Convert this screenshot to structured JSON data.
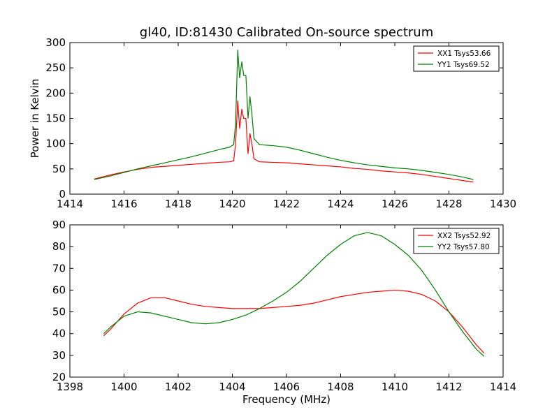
{
  "figure": {
    "title": "gl40, ID:81430 Calibrated On-source spectrum"
  },
  "chart_data": [
    {
      "type": "line",
      "title": "gl40, ID:81430 Calibrated On-source spectrum",
      "xlabel": "",
      "ylabel": "Power in Kelvin",
      "xlim": [
        1414,
        1430
      ],
      "ylim": [
        0,
        300
      ],
      "xticks": [
        1414,
        1416,
        1418,
        1420,
        1422,
        1424,
        1426,
        1428,
        1430
      ],
      "yticks": [
        0,
        50,
        100,
        150,
        200,
        250,
        300
      ],
      "grid": false,
      "legend_position": "top-right",
      "series": [
        {
          "name": "XX1 Tsys53.66",
          "color": "#ff0000",
          "points": [
            [
              1414.9,
              30
            ],
            [
              1415.5,
              38
            ],
            [
              1416.0,
              44
            ],
            [
              1416.5,
              49
            ],
            [
              1417.0,
              53
            ],
            [
              1417.5,
              55
            ],
            [
              1418.0,
              57
            ],
            [
              1418.5,
              59
            ],
            [
              1419.0,
              61
            ],
            [
              1419.5,
              63
            ],
            [
              1419.9,
              64
            ],
            [
              1420.05,
              66
            ],
            [
              1420.12,
              100
            ],
            [
              1420.2,
              185
            ],
            [
              1420.27,
              130
            ],
            [
              1420.35,
              168
            ],
            [
              1420.42,
              150
            ],
            [
              1420.5,
              150
            ],
            [
              1420.58,
              80
            ],
            [
              1420.65,
              120
            ],
            [
              1420.72,
              100
            ],
            [
              1420.8,
              70
            ],
            [
              1421.0,
              64
            ],
            [
              1421.5,
              63
            ],
            [
              1422.0,
              62
            ],
            [
              1422.5,
              60
            ],
            [
              1423.0,
              58
            ],
            [
              1423.5,
              56
            ],
            [
              1424.0,
              54
            ],
            [
              1424.5,
              51
            ],
            [
              1425.0,
              49
            ],
            [
              1425.5,
              46
            ],
            [
              1426.0,
              44
            ],
            [
              1426.5,
              42
            ],
            [
              1427.0,
              39
            ],
            [
              1427.5,
              35
            ],
            [
              1428.0,
              31
            ],
            [
              1428.5,
              27
            ],
            [
              1428.9,
              24
            ]
          ]
        },
        {
          "name": "YY1 Tsys69.52",
          "color": "#008000",
          "points": [
            [
              1414.9,
              29
            ],
            [
              1415.5,
              36
            ],
            [
              1416.0,
              43
            ],
            [
              1416.5,
              50
            ],
            [
              1417.0,
              56
            ],
            [
              1417.5,
              62
            ],
            [
              1418.0,
              68
            ],
            [
              1418.5,
              74
            ],
            [
              1419.0,
              81
            ],
            [
              1419.5,
              88
            ],
            [
              1419.9,
              93
            ],
            [
              1420.05,
              98
            ],
            [
              1420.12,
              140
            ],
            [
              1420.2,
              285
            ],
            [
              1420.27,
              230
            ],
            [
              1420.35,
              262
            ],
            [
              1420.42,
              235
            ],
            [
              1420.5,
              235
            ],
            [
              1420.58,
              150
            ],
            [
              1420.65,
              193
            ],
            [
              1420.72,
              160
            ],
            [
              1420.8,
              110
            ],
            [
              1421.0,
              98
            ],
            [
              1421.5,
              96
            ],
            [
              1422.0,
              93
            ],
            [
              1422.5,
              87
            ],
            [
              1423.0,
              80
            ],
            [
              1423.5,
              73
            ],
            [
              1424.0,
              67
            ],
            [
              1424.5,
              62
            ],
            [
              1425.0,
              58
            ],
            [
              1425.5,
              55
            ],
            [
              1426.0,
              52
            ],
            [
              1426.5,
              50
            ],
            [
              1427.0,
              47
            ],
            [
              1427.5,
              43
            ],
            [
              1428.0,
              39
            ],
            [
              1428.5,
              34
            ],
            [
              1428.9,
              29
            ]
          ]
        }
      ]
    },
    {
      "type": "line",
      "title": "",
      "xlabel": "Frequency (MHz)",
      "ylabel": "",
      "xlim": [
        1398,
        1414
      ],
      "ylim": [
        20,
        90
      ],
      "xticks": [
        1398,
        1400,
        1402,
        1404,
        1406,
        1408,
        1410,
        1412,
        1414
      ],
      "yticks": [
        20,
        30,
        40,
        50,
        60,
        70,
        80,
        90
      ],
      "grid": false,
      "legend_position": "top-right",
      "series": [
        {
          "name": "XX2 Tsys52.92",
          "color": "#ff0000",
          "points": [
            [
              1399.25,
              39
            ],
            [
              1399.5,
              42
            ],
            [
              1400.0,
              49
            ],
            [
              1400.5,
              54
            ],
            [
              1401.0,
              56.5
            ],
            [
              1401.5,
              56.5
            ],
            [
              1402.0,
              55
            ],
            [
              1402.5,
              53.5
            ],
            [
              1403.0,
              52.5
            ],
            [
              1403.5,
              52
            ],
            [
              1404.0,
              51.5
            ],
            [
              1404.5,
              51.5
            ],
            [
              1405.0,
              51.5
            ],
            [
              1405.5,
              52
            ],
            [
              1406.0,
              52.5
            ],
            [
              1406.5,
              53
            ],
            [
              1407.0,
              54
            ],
            [
              1407.5,
              55.5
            ],
            [
              1408.0,
              57
            ],
            [
              1408.5,
              58
            ],
            [
              1409.0,
              59
            ],
            [
              1409.5,
              59.5
            ],
            [
              1410.0,
              60
            ],
            [
              1410.5,
              59.5
            ],
            [
              1411.0,
              58
            ],
            [
              1411.5,
              55
            ],
            [
              1412.0,
              50
            ],
            [
              1412.5,
              43
            ],
            [
              1413.0,
              35
            ],
            [
              1413.3,
              31
            ]
          ]
        },
        {
          "name": "YY2 Tsys57.80",
          "color": "#008000",
          "points": [
            [
              1399.25,
              40
            ],
            [
              1399.5,
              43
            ],
            [
              1400.0,
              48
            ],
            [
              1400.5,
              50
            ],
            [
              1401.0,
              49.5
            ],
            [
              1401.5,
              48
            ],
            [
              1402.0,
              46.5
            ],
            [
              1402.5,
              45
            ],
            [
              1403.0,
              44.5
            ],
            [
              1403.5,
              45
            ],
            [
              1404.0,
              46.5
            ],
            [
              1404.5,
              48.5
            ],
            [
              1405.0,
              51.5
            ],
            [
              1405.5,
              55
            ],
            [
              1406.0,
              59
            ],
            [
              1406.5,
              64
            ],
            [
              1407.0,
              70
            ],
            [
              1407.5,
              76
            ],
            [
              1408.0,
              81
            ],
            [
              1408.5,
              85
            ],
            [
              1409.0,
              86.5
            ],
            [
              1409.5,
              85
            ],
            [
              1410.0,
              81
            ],
            [
              1410.5,
              76
            ],
            [
              1411.0,
              69
            ],
            [
              1411.5,
              60
            ],
            [
              1412.0,
              50
            ],
            [
              1412.5,
              41
            ],
            [
              1413.0,
              33
            ],
            [
              1413.3,
              29.5
            ]
          ]
        }
      ]
    }
  ]
}
